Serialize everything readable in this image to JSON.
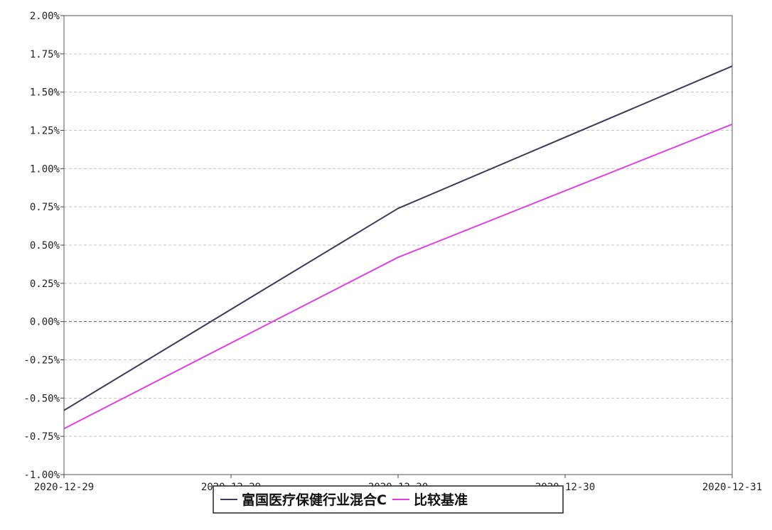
{
  "chart_data": {
    "type": "line",
    "x": [
      "2020-12-29",
      "2020-12-30",
      "2020-12-31"
    ],
    "x_tick_labels": [
      "2020-12-29",
      "2020-12-29",
      "2020-12-30",
      "2020-12-30",
      "2020-12-31"
    ],
    "y_tick_labels": [
      "2.00%",
      "1.75%",
      "1.50%",
      "1.25%",
      "1.00%",
      "0.75%",
      "0.50%",
      "0.25%",
      "0.00%",
      "-0.25%",
      "-0.50%",
      "-0.75%",
      "-1.00%"
    ],
    "ylim": [
      -1.0,
      2.0
    ],
    "y_unit": "%",
    "series": [
      {
        "name": "富国医疗保健行业混合C",
        "values": [
          -0.58,
          0.74,
          1.67
        ],
        "color": "#3b3b5e"
      },
      {
        "name": "比较基准",
        "values": [
          -0.7,
          0.42,
          1.29
        ],
        "color": "#e040e0"
      }
    ],
    "grid": true,
    "legend_position": "bottom-center"
  }
}
